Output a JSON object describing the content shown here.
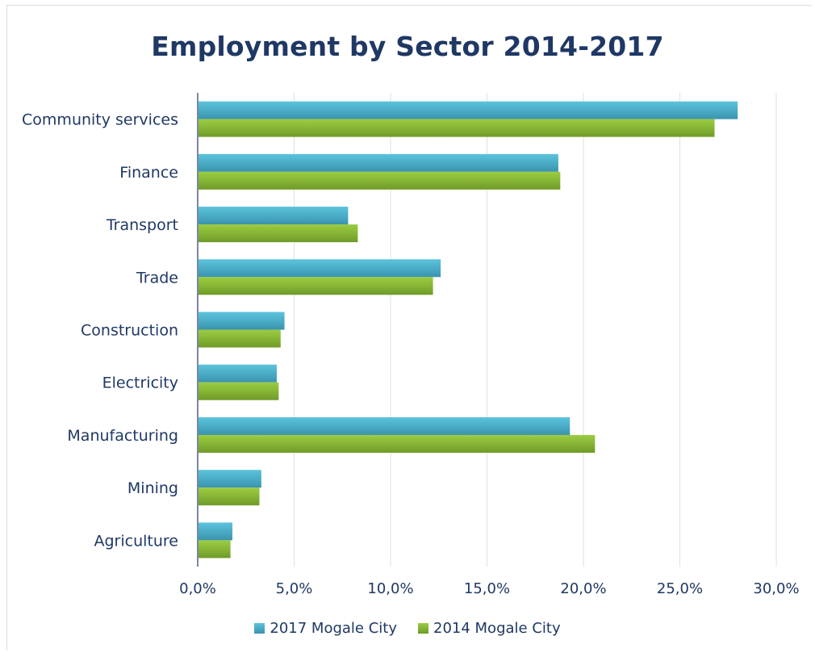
{
  "chart_data": {
    "type": "bar",
    "orientation": "horizontal",
    "title": "Employment by Sector 2014-2017",
    "categories": [
      "Community services",
      "Finance",
      "Transport",
      "Trade",
      "Construction",
      "Electricity",
      "Manufacturing",
      "Mining",
      "Agriculture"
    ],
    "series": [
      {
        "name": "2017 Mogale City",
        "color": "#4bacc6",
        "values": [
          28.0,
          18.7,
          7.8,
          12.6,
          4.5,
          4.1,
          19.3,
          3.3,
          1.8
        ]
      },
      {
        "name": "2014 Mogale City",
        "color": "#8fbc3b",
        "values": [
          26.8,
          18.8,
          8.3,
          12.2,
          4.3,
          4.2,
          20.6,
          3.2,
          1.7
        ]
      }
    ],
    "xlim": [
      0,
      30
    ],
    "xticks": [
      "0,0%",
      "5,0%",
      "10,0%",
      "15,0%",
      "20,0%",
      "25,0%",
      "30,0%"
    ],
    "grid": true,
    "legend_position": "bottom"
  }
}
